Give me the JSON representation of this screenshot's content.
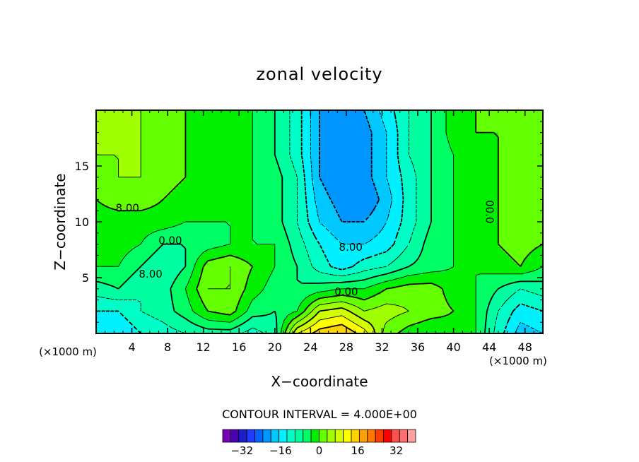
{
  "chart_data": {
    "type": "heatmap",
    "title": "zonal velocity",
    "xlabel": "X−coordinate",
    "ylabel": "Z−coordinate",
    "x_unit_left": "(×1000 m)",
    "x_unit_right": "(×1000 m)",
    "xlim": [
      0,
      50
    ],
    "ylim": [
      0,
      20
    ],
    "x_ticks": [
      4,
      8,
      12,
      16,
      20,
      24,
      28,
      32,
      36,
      40,
      44,
      48
    ],
    "y_ticks": [
      5,
      10,
      15
    ],
    "contour_interval_text": "CONTOUR INTERVAL = 4.000E+00",
    "contour_labels": [
      {
        "text": "8.00",
        "x": 3.5,
        "y": 11.2
      },
      {
        "text": "0.00",
        "x": 8.3,
        "y": 8.3
      },
      {
        "text": "8.00",
        "x": 6.1,
        "y": 5.3
      },
      {
        "text": "8.00",
        "x": 28.5,
        "y": 7.7
      },
      {
        "text": "0.00",
        "x": 28.0,
        "y": 3.7
      },
      {
        "text": "00.0",
        "x": 44.0,
        "y": 10.9
      }
    ],
    "colorbar": {
      "min": -40,
      "max": 40,
      "step": 4,
      "tick_labels": [
        "−32",
        "−16",
        "0",
        "16",
        "32"
      ],
      "tick_values": [
        -32,
        -16,
        0,
        16,
        32
      ],
      "colors": [
        "#7a00b4",
        "#4a00b4",
        "#1e1ec8",
        "#1e3cff",
        "#0064ff",
        "#0096ff",
        "#00c8ff",
        "#00f0ff",
        "#00ffc8",
        "#00ffa0",
        "#00ff64",
        "#00f000",
        "#64ff00",
        "#a0ff00",
        "#d2ff00",
        "#ffff00",
        "#ffd200",
        "#ffa000",
        "#ff7800",
        "#ff3c00",
        "#ff0000",
        "#ff5050",
        "#ff7070",
        "#ffa0a0"
      ]
    },
    "grid": {
      "nx": 21,
      "ny": 11,
      "x0": 0,
      "dx": 2.5,
      "y0": 0,
      "dy": 2,
      "z": [
        [
          -12,
          -12,
          -8,
          -6,
          -4,
          -2,
          -2,
          -6,
          -2,
          20,
          26,
          28,
          22,
          10,
          6,
          4,
          6,
          4,
          -6,
          -14,
          -12
        ],
        [
          -8,
          -8,
          -4,
          -2,
          2,
          8,
          10,
          2,
          0,
          4,
          16,
          18,
          12,
          14,
          12,
          10,
          8,
          4,
          -4,
          -10,
          -8
        ],
        [
          -2,
          0,
          -4,
          -2,
          4,
          12,
          12,
          6,
          2,
          0,
          2,
          4,
          4,
          8,
          10,
          10,
          6,
          4,
          0,
          -4,
          -2
        ],
        [
          4,
          4,
          0,
          -4,
          0,
          10,
          12,
          8,
          4,
          0,
          -6,
          -10,
          -6,
          -4,
          0,
          2,
          4,
          4,
          6,
          8,
          4
        ],
        [
          6,
          6,
          4,
          0,
          0,
          2,
          4,
          4,
          4,
          -2,
          -8,
          -12,
          -12,
          -10,
          -4,
          2,
          4,
          4,
          8,
          10,
          8
        ],
        [
          6,
          6,
          6,
          6,
          4,
          4,
          4,
          4,
          2,
          -4,
          -12,
          -16,
          -16,
          -12,
          -6,
          0,
          4,
          4,
          8,
          10,
          8
        ],
        [
          8,
          10,
          10,
          8,
          6,
          6,
          6,
          4,
          2,
          -4,
          -14,
          -18,
          -20,
          -14,
          -6,
          0,
          4,
          6,
          8,
          10,
          8
        ],
        [
          10,
          12,
          12,
          10,
          8,
          6,
          6,
          4,
          2,
          -4,
          -16,
          -20,
          -18,
          -12,
          -6,
          0,
          4,
          6,
          8,
          10,
          10
        ],
        [
          12,
          12,
          12,
          10,
          8,
          6,
          6,
          4,
          0,
          -6,
          -16,
          -18,
          -18,
          -12,
          -4,
          0,
          4,
          6,
          8,
          10,
          10
        ],
        [
          12,
          12,
          12,
          10,
          8,
          6,
          6,
          4,
          0,
          -6,
          -16,
          -18,
          -18,
          -12,
          -4,
          0,
          6,
          8,
          8,
          10,
          10
        ],
        [
          12,
          12,
          12,
          10,
          8,
          6,
          6,
          4,
          0,
          -6,
          -16,
          -18,
          -16,
          -10,
          -4,
          0,
          6,
          8,
          8,
          10,
          10
        ]
      ]
    }
  }
}
